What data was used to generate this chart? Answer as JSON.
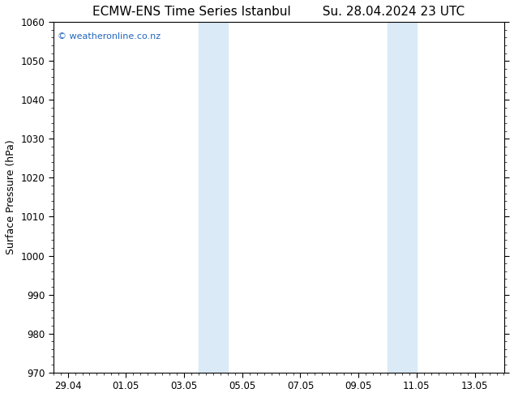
{
  "title_left": "ECMW-ENS Time Series Istanbul",
  "title_right": "Su. 28.04.2024 23 UTC",
  "ylabel": "Surface Pressure (hPa)",
  "ylim": [
    970,
    1060
  ],
  "yticks": [
    970,
    980,
    990,
    1000,
    1010,
    1020,
    1030,
    1040,
    1050,
    1060
  ],
  "xlim_start": -0.5,
  "xlim_end": 15.0,
  "xtick_labels": [
    "29.04",
    "01.05",
    "03.05",
    "05.05",
    "07.05",
    "09.05",
    "11.05",
    "13.05"
  ],
  "xtick_positions": [
    0,
    2,
    4,
    6,
    8,
    10,
    12,
    14
  ],
  "shaded_bands": [
    {
      "x_start": 4.5,
      "x_end": 5.5
    },
    {
      "x_start": 11.0,
      "x_end": 12.0
    }
  ],
  "background_color": "#ffffff",
  "plot_bg_color": "#ffffff",
  "shade_color": "#daeaf7",
  "watermark_text": "© weatheronline.co.nz",
  "watermark_color": "#2266bb",
  "title_fontsize": 11,
  "label_fontsize": 9,
  "tick_fontsize": 8.5
}
